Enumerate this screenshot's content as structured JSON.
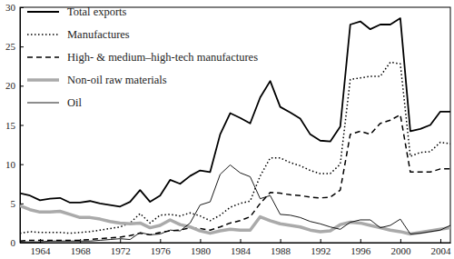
{
  "chart_data": {
    "type": "line",
    "x": [
      1962,
      1963,
      1964,
      1965,
      1966,
      1967,
      1968,
      1969,
      1970,
      1971,
      1972,
      1973,
      1974,
      1975,
      1976,
      1977,
      1978,
      1979,
      1980,
      1981,
      1982,
      1983,
      1984,
      1985,
      1986,
      1987,
      1988,
      1989,
      1990,
      1991,
      1992,
      1993,
      1994,
      1995,
      1996,
      1997,
      1998,
      1999,
      2000,
      2001,
      2002,
      2003,
      2004,
      2005
    ],
    "xlim": [
      1962,
      2005
    ],
    "xticks": [
      1964,
      1968,
      1972,
      1976,
      1980,
      1984,
      1988,
      1992,
      1996,
      2000,
      2004
    ],
    "ylim": [
      0,
      30
    ],
    "yticks": [
      0,
      5,
      10,
      15,
      20,
      25,
      30
    ],
    "legend": "upper left",
    "series": [
      {
        "name": "Total exports",
        "color": "#000000",
        "line_style": "solid",
        "values": [
          6.3,
          6.0,
          5.4,
          5.6,
          5.7,
          5.1,
          5.1,
          5.3,
          5.0,
          4.8,
          4.6,
          5.2,
          6.7,
          5.2,
          6.0,
          8.0,
          7.5,
          8.5,
          9.2,
          9.0,
          13.8,
          16.5,
          15.9,
          15.2,
          18.5,
          20.6,
          17.3,
          16.6,
          15.8,
          13.8,
          13.0,
          12.9,
          14.8,
          27.8,
          28.2,
          27.2,
          27.8,
          27.8,
          28.6,
          14.2,
          14.5,
          15.0,
          16.7,
          16.7
        ]
      },
      {
        "name": "Manufactures",
        "color": "#000000",
        "line_style": "dotted",
        "values": [
          1.2,
          1.4,
          1.3,
          1.3,
          1.3,
          1.2,
          1.3,
          1.4,
          1.6,
          1.8,
          2.0,
          2.5,
          3.7,
          2.5,
          3.5,
          3.6,
          3.4,
          3.8,
          3.4,
          2.8,
          3.5,
          4.5,
          5.0,
          5.3,
          8.5,
          10.8,
          10.8,
          10.2,
          9.8,
          9.2,
          8.8,
          8.8,
          10.0,
          20.8,
          21.0,
          21.2,
          21.2,
          23.0,
          22.8,
          11.0,
          11.5,
          11.6,
          12.8,
          12.6
        ]
      },
      {
        "name": "High- & medium–high-tech manufactures",
        "color": "#000000",
        "line_style": "dashed",
        "values": [
          0.2,
          0.3,
          0.3,
          0.3,
          0.3,
          0.3,
          0.3,
          0.4,
          0.5,
          0.6,
          0.7,
          0.9,
          1.2,
          1.0,
          1.3,
          1.5,
          1.6,
          1.9,
          1.8,
          1.6,
          2.0,
          2.5,
          2.8,
          3.3,
          5.0,
          6.4,
          6.3,
          6.1,
          6.0,
          5.8,
          5.7,
          5.8,
          6.7,
          13.8,
          14.2,
          13.8,
          15.2,
          15.6,
          16.3,
          9.0,
          9.0,
          9.0,
          9.4,
          9.4
        ]
      },
      {
        "name": "Non-oil raw materials",
        "color": "#aaaaaa",
        "line_style": "solid",
        "values": [
          4.7,
          4.2,
          3.9,
          3.9,
          4.0,
          3.6,
          3.2,
          3.2,
          3.0,
          2.7,
          2.5,
          2.4,
          2.5,
          1.9,
          2.2,
          2.9,
          2.3,
          2.0,
          1.5,
          1.2,
          1.5,
          1.7,
          1.6,
          1.6,
          3.3,
          2.8,
          2.4,
          2.2,
          2.0,
          1.6,
          1.4,
          1.5,
          2.3,
          2.6,
          2.5,
          2.2,
          1.9,
          1.6,
          1.4,
          1.1,
          1.3,
          1.5,
          1.7,
          1.9
        ]
      },
      {
        "name": "Oil",
        "color": "#000000",
        "line_style": "solid",
        "values": [
          0.1,
          0.1,
          0.1,
          0.2,
          0.2,
          0.2,
          0.2,
          0.2,
          0.3,
          0.4,
          0.5,
          0.4,
          1.3,
          1.0,
          1.1,
          1.6,
          1.5,
          2.5,
          4.8,
          5.2,
          8.7,
          9.9,
          8.9,
          8.4,
          5.6,
          6.0,
          3.6,
          3.5,
          3.2,
          2.7,
          2.4,
          2.0,
          1.7,
          2.6,
          2.9,
          2.9,
          1.9,
          2.2,
          3.0,
          1.1,
          1.2,
          1.4,
          1.6,
          2.2
        ]
      }
    ]
  }
}
